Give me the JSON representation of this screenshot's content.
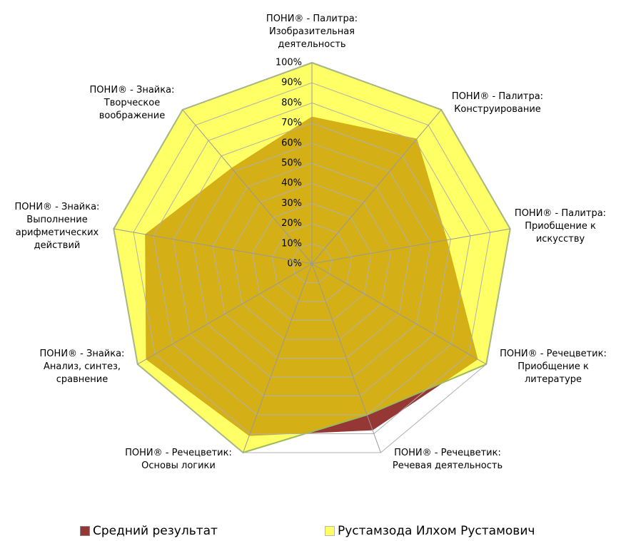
{
  "chart_data": {
    "type": "radar",
    "categories": [
      "ПОНИ® - Палитра:\nИзобразительная\nдеятельность",
      "ПОНИ® - Палитра:\nКонструирование",
      "ПОНИ® - Палитра:\nПриобщение к\nискусству",
      "ПОНИ® - Речецветик:\nПриобщение к\nлитературе",
      "ПОНИ® - Речецветик:\nРечевая деятельность",
      "ПОНИ® - Речецветик:\nОсновы логики",
      "ПОНИ® - Знайка:\nАнализ, синтез,\nсравнение",
      "ПОНИ® - Знайка:\nВыполнение\nарифметических\nдействий",
      "ПОНИ® - Знайка:\nТворческое\nвоображение"
    ],
    "series": [
      {
        "name": "Средний результат",
        "color": "#953735",
        "values": [
          73,
          81,
          68,
          95,
          88,
          91,
          95,
          84,
          62
        ]
      },
      {
        "name": "Рустамзода Илхом Рустамович",
        "color": "#ffff00",
        "values": [
          100,
          100,
          100,
          100,
          80,
          100,
          100,
          100,
          100
        ]
      }
    ],
    "ylim": [
      0,
      100
    ],
    "yticks": [
      {
        "value": 0,
        "label": "0%"
      },
      {
        "value": 10,
        "label": "10%"
      },
      {
        "value": 20,
        "label": "20%"
      },
      {
        "value": 30,
        "label": "30%"
      },
      {
        "value": 40,
        "label": "40%"
      },
      {
        "value": 50,
        "label": "50%"
      },
      {
        "value": 60,
        "label": "60%"
      },
      {
        "value": 70,
        "label": "70%"
      },
      {
        "value": 80,
        "label": "80%"
      },
      {
        "value": 90,
        "label": "90%"
      },
      {
        "value": 100,
        "label": "100%"
      }
    ],
    "grid": true
  }
}
